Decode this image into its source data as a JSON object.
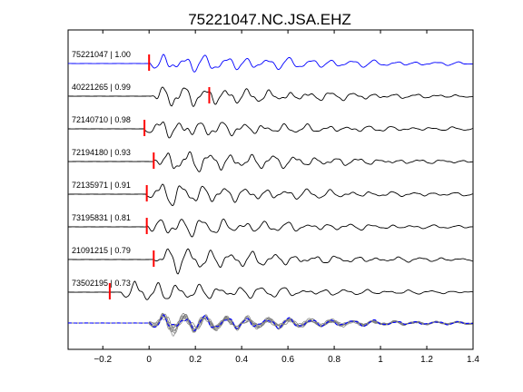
{
  "chart_data": {
    "type": "line",
    "title": "75221047.NC.JSA.EHZ",
    "xlabel": "",
    "ylabel": "",
    "xlim": [
      -0.35,
      1.4
    ],
    "x_ticks": [
      -0.2,
      0,
      0.2,
      0.4,
      0.6,
      0.8,
      1,
      1.2,
      1.4
    ],
    "x_tick_labels": [
      "−0.2",
      "0",
      "0.2",
      "0.4",
      "0.6",
      "0.8",
      "1",
      "1.2",
      "1.4"
    ],
    "grid": false,
    "colors": {
      "reference": "#0000ff",
      "trace": "#000000",
      "marker": "#ff0000",
      "stack": "#7f7f7f"
    },
    "series": [
      {
        "label": "75221047 | 1.00",
        "onset": 0.0,
        "pick": 0.0,
        "reference": true
      },
      {
        "label": "40221265 | 0.99",
        "onset": 0.0,
        "pick": 0.26,
        "reference": false
      },
      {
        "label": "72140710 | 0.98",
        "onset": -0.02,
        "pick": -0.02,
        "reference": false
      },
      {
        "label": "72194180 | 0.93",
        "onset": 0.02,
        "pick": 0.02,
        "reference": false
      },
      {
        "label": "72135971 | 0.91",
        "onset": -0.01,
        "pick": -0.01,
        "reference": false
      },
      {
        "label": "73195831 | 0.81",
        "onset": -0.01,
        "pick": -0.01,
        "reference": false
      },
      {
        "label": "21091215 | 0.79",
        "onset": 0.02,
        "pick": 0.02,
        "reference": false
      },
      {
        "label": "73502195 | 0.73",
        "onset": -0.12,
        "pick": -0.17,
        "reference": false
      }
    ],
    "stack_included": true
  }
}
